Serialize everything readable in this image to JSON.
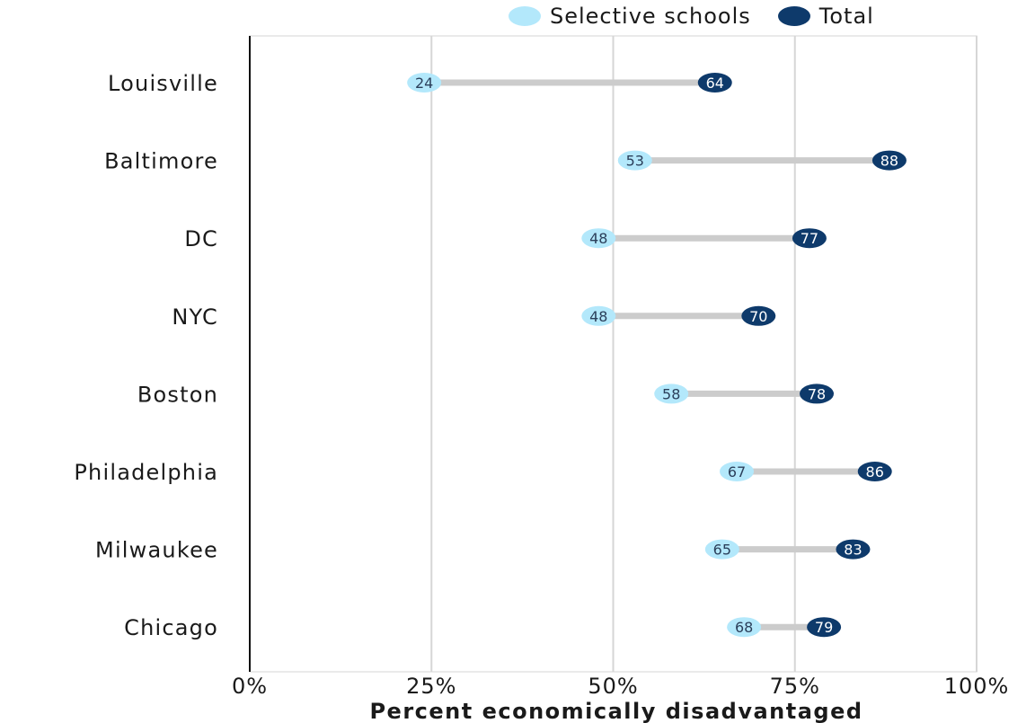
{
  "chart_data": {
    "type": "dumbbell",
    "xlabel": "Percent economically disadvantaged",
    "ylabel": "",
    "xlim": [
      0,
      100
    ],
    "x_ticks": [
      0,
      25,
      50,
      75,
      100
    ],
    "x_tick_labels": [
      "0%",
      "25%",
      "50%",
      "75%",
      "100%"
    ],
    "categories": [
      "Louisville",
      "Baltimore",
      "DC",
      "NYC",
      "Boston",
      "Philadelphia",
      "Milwaukee",
      "Chicago"
    ],
    "series": [
      {
        "name": "Selective schools",
        "color": "#b3e8fb",
        "text_color": "#2b3f5a",
        "values": [
          24,
          53,
          48,
          48,
          58,
          67,
          65,
          68
        ]
      },
      {
        "name": "Total",
        "color": "#0e3a6b",
        "text_color": "#ffffff",
        "values": [
          64,
          88,
          77,
          70,
          78,
          86,
          83,
          79
        ]
      }
    ],
    "legend_position": "top-right",
    "grid": "vertical"
  }
}
